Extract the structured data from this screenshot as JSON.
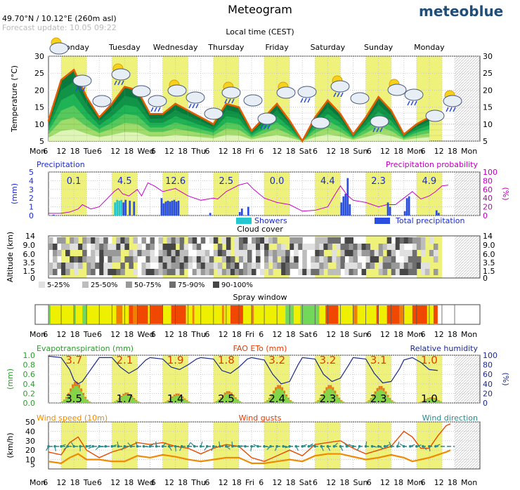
{
  "header": {
    "title": "Meteogram",
    "coords": "49.70°N / 10.12°E (260m asl)",
    "forecast_update": "Forecast update: 10.05 09:22",
    "brand": "meteoblue",
    "local_time": "Local time (CEST)"
  },
  "days": [
    "Monday",
    "Tuesday",
    "Wednesday",
    "Thursday",
    "Friday",
    "Saturday",
    "Sunday",
    "Monday"
  ],
  "bottom_axis_ticks": [
    "Mon",
    "6",
    "12",
    "18",
    "Tue",
    "6",
    "12",
    "18",
    "Wed",
    "6",
    "12",
    "18",
    "Thu",
    "6",
    "12",
    "18",
    "Fri",
    "6",
    "12",
    "18",
    "Sat",
    "6",
    "12",
    "18",
    "Sun",
    "6",
    "12",
    "18",
    "Mon",
    "6",
    "12",
    "18",
    "Mon"
  ],
  "colors": {
    "day_band": "#eef27a",
    "grid": "#c8c8c8",
    "temp_line": "#e65c00",
    "precip": "#2a4fe0",
    "showers": "#22c7d0",
    "prob_line": "#cc00cc",
    "humidity": "#1b2a8c",
    "evapo": "#7fd84a",
    "fao": "#e67a1a",
    "wind_speed": "#f08a00",
    "wind_gust": "#e84a00",
    "wind_dir": "#2a8a8a"
  },
  "chart_data": [
    {
      "type": "line",
      "panel": "temperature",
      "ylabel": "Temperature (°C)",
      "ylim": [
        5,
        30
      ],
      "yticks": [
        5,
        10,
        15,
        20,
        25,
        30
      ],
      "x_hours": [
        0,
        6,
        12,
        18,
        24,
        30,
        36,
        42,
        48,
        54,
        60,
        66,
        72,
        78,
        84,
        90,
        96,
        102,
        108,
        114,
        120,
        126,
        132,
        138,
        144,
        150,
        156,
        162,
        168,
        174,
        180,
        186,
        192
      ],
      "series": [
        {
          "values": [
            11,
            23,
            26,
            18,
            12,
            16,
            21,
            20,
            13,
            13,
            16,
            14,
            12,
            10,
            16,
            15,
            8,
            12,
            16,
            11,
            5,
            12,
            17,
            13,
            7,
            12,
            18,
            14,
            7,
            10,
            12,
            null,
            null
          ]
        }
      ]
    },
    {
      "type": "bar",
      "panel": "precipitation",
      "title_left": "Precipitation",
      "title_right": "Precipitation probability",
      "ylabel": "(mm)",
      "ylabel_right": "(%)",
      "ylim": [
        0,
        5
      ],
      "yticks": [
        0,
        1,
        2,
        3,
        4,
        5
      ],
      "ylim_right": [
        0,
        100
      ],
      "yticks_right": [
        0,
        20,
        40,
        60,
        80,
        100
      ],
      "daily_totals": [
        "0.1",
        "4.5",
        "12.6",
        "2.5",
        "0.0",
        "4.4",
        "2.3",
        "4.9"
      ],
      "legend": [
        "Showers",
        "Total precipitation"
      ],
      "bars_total": [
        [
          2,
          0.1
        ],
        [
          35,
          1.5
        ],
        [
          36,
          1.8
        ],
        [
          38,
          1.7
        ],
        [
          40,
          1.6
        ],
        [
          53,
          2.0
        ],
        [
          54,
          1.4
        ],
        [
          55,
          1.6
        ],
        [
          56,
          1.7
        ],
        [
          57,
          1.6
        ],
        [
          58,
          1.7
        ],
        [
          59,
          1.8
        ],
        [
          60,
          1.6
        ],
        [
          61,
          1.7
        ],
        [
          76,
          0.3
        ],
        [
          90,
          0.4
        ],
        [
          91,
          0.8
        ],
        [
          94,
          1.0
        ],
        [
          138,
          1.5
        ],
        [
          139,
          2.2
        ],
        [
          140,
          2.5
        ],
        [
          141,
          4.3
        ],
        [
          142,
          1.3
        ],
        [
          160,
          1.5
        ],
        [
          161,
          1.0
        ],
        [
          168,
          0.5
        ],
        [
          169,
          2.0
        ],
        [
          170,
          2.2
        ],
        [
          183,
          0.6
        ],
        [
          184,
          0.3
        ]
      ],
      "bars_showers": [
        [
          31,
          1.5
        ],
        [
          32,
          1.8
        ],
        [
          33,
          1.7
        ],
        [
          34,
          1.8
        ]
      ],
      "probability": [
        [
          0,
          5
        ],
        [
          6,
          5
        ],
        [
          10,
          8
        ],
        [
          14,
          15
        ],
        [
          16,
          25
        ],
        [
          20,
          15
        ],
        [
          24,
          20
        ],
        [
          28,
          40
        ],
        [
          31,
          55
        ],
        [
          33,
          62
        ],
        [
          35,
          50
        ],
        [
          38,
          45
        ],
        [
          42,
          60
        ],
        [
          44,
          45
        ],
        [
          47,
          75
        ],
        [
          50,
          68
        ],
        [
          54,
          55
        ],
        [
          60,
          62
        ],
        [
          66,
          45
        ],
        [
          72,
          35
        ],
        [
          78,
          40
        ],
        [
          80,
          38
        ],
        [
          84,
          55
        ],
        [
          90,
          70
        ],
        [
          94,
          75
        ],
        [
          97,
          60
        ],
        [
          102,
          40
        ],
        [
          108,
          30
        ],
        [
          114,
          25
        ],
        [
          120,
          10
        ],
        [
          126,
          12
        ],
        [
          132,
          20
        ],
        [
          135,
          45
        ],
        [
          138,
          68
        ],
        [
          141,
          48
        ],
        [
          144,
          35
        ],
        [
          150,
          30
        ],
        [
          156,
          20
        ],
        [
          160,
          25
        ],
        [
          164,
          25
        ],
        [
          168,
          40
        ],
        [
          172,
          55
        ],
        [
          176,
          38
        ],
        [
          180,
          45
        ],
        [
          183,
          55
        ],
        [
          186,
          68
        ],
        [
          189,
          70
        ]
      ]
    },
    {
      "type": "heatmap",
      "panel": "cloud_cover",
      "title": "Cloud cover",
      "ylabel": "Altitude (km)",
      "yticks": [
        "0",
        "1.5",
        "3.5",
        "6.0",
        "9.0",
        "14"
      ],
      "legend": [
        "5-25%",
        "25-50%",
        "50-75%",
        "75-90%",
        "90-100%"
      ],
      "legend_colors": [
        "#e0e0e0",
        "#bdbdbd",
        "#999999",
        "#6e6e6e",
        "#464646"
      ]
    },
    {
      "type": "table",
      "panel": "spray_window",
      "title": "Spray window",
      "segments": [
        [
          "g",
          0,
          1
        ],
        [
          "y",
          1,
          12
        ],
        [
          "g",
          12,
          13
        ],
        [
          "y",
          13,
          16
        ],
        [
          "g",
          16,
          18
        ],
        [
          "y",
          18,
          32
        ],
        [
          "o",
          32,
          35
        ],
        [
          "y",
          35,
          38
        ],
        [
          "r",
          38,
          40
        ],
        [
          "o",
          40,
          42
        ],
        [
          "r",
          42,
          47
        ],
        [
          "y",
          47,
          48
        ],
        [
          "r",
          48,
          54
        ],
        [
          "y",
          54,
          58
        ],
        [
          "r",
          58,
          65
        ],
        [
          "y",
          65,
          68
        ],
        [
          "o",
          68,
          69
        ],
        [
          "y",
          69,
          74
        ],
        [
          "g",
          74,
          75
        ],
        [
          "y",
          74,
          82
        ],
        [
          "o",
          82,
          83
        ],
        [
          "y",
          83,
          86
        ],
        [
          "r",
          86,
          92
        ],
        [
          "y",
          92,
          96
        ],
        [
          "o",
          96,
          97
        ],
        [
          "y",
          97,
          112
        ],
        [
          "g",
          112,
          116
        ],
        [
          "y",
          116,
          119
        ],
        [
          "g",
          119,
          128
        ],
        [
          "r",
          128,
          136
        ],
        [
          "y",
          128,
          131
        ],
        [
          "r",
          131,
          137
        ],
        [
          "y",
          137,
          144
        ],
        [
          "o",
          144,
          146
        ],
        [
          "y",
          146,
          155
        ],
        [
          "r",
          155,
          156
        ],
        [
          "y",
          156,
          160
        ],
        [
          "r",
          160,
          166
        ],
        [
          "o",
          166,
          168
        ],
        [
          "y",
          168,
          172
        ],
        [
          "r",
          172,
          179
        ],
        [
          "y",
          179,
          182
        ],
        [
          "r",
          182,
          184
        ],
        [
          "w",
          184,
          192
        ]
      ]
    },
    {
      "type": "bar",
      "panel": "evapotranspiration",
      "title_left": "Evapotranspiration (mm)",
      "title_mid": "FAO ETo (mm)",
      "title_right": "Relative humidity",
      "ylabel": "(mm)",
      "ylabel_right": "(%)",
      "ylim": [
        0,
        1.0
      ],
      "yticks": [
        "0.0",
        "0.2",
        "0.4",
        "0.6",
        "0.8",
        "1.0"
      ],
      "ylim_right": [
        0,
        100
      ],
      "yticks_right": [
        0,
        20,
        40,
        60,
        80,
        100
      ],
      "fao_totals": [
        "3.7",
        "2.1",
        "1.9",
        "1.8",
        "3.2",
        "3.2",
        "3.1",
        "1.0"
      ],
      "evapo_totals": [
        "3.5",
        "1.7",
        "1.4",
        "2.5",
        "2.4",
        "2.3",
        "2.3",
        "1.0"
      ],
      "humidity": [
        [
          0,
          98
        ],
        [
          6,
          95
        ],
        [
          10,
          70
        ],
        [
          12,
          48
        ],
        [
          14,
          40
        ],
        [
          16,
          45
        ],
        [
          20,
          70
        ],
        [
          24,
          95
        ],
        [
          30,
          95
        ],
        [
          34,
          75
        ],
        [
          38,
          62
        ],
        [
          42,
          72
        ],
        [
          46,
          90
        ],
        [
          48,
          95
        ],
        [
          54,
          92
        ],
        [
          58,
          75
        ],
        [
          62,
          70
        ],
        [
          66,
          80
        ],
        [
          70,
          92
        ],
        [
          72,
          95
        ],
        [
          78,
          92
        ],
        [
          82,
          68
        ],
        [
          86,
          62
        ],
        [
          90,
          75
        ],
        [
          94,
          92
        ],
        [
          96,
          95
        ],
        [
          102,
          90
        ],
        [
          106,
          60
        ],
        [
          110,
          40
        ],
        [
          114,
          45
        ],
        [
          118,
          80
        ],
        [
          120,
          95
        ],
        [
          126,
          92
        ],
        [
          130,
          60
        ],
        [
          134,
          45
        ],
        [
          138,
          52
        ],
        [
          142,
          80
        ],
        [
          144,
          95
        ],
        [
          150,
          92
        ],
        [
          154,
          62
        ],
        [
          158,
          42
        ],
        [
          162,
          45
        ],
        [
          166,
          72
        ],
        [
          168,
          90
        ],
        [
          172,
          95
        ],
        [
          176,
          85
        ],
        [
          180,
          70
        ],
        [
          184,
          68
        ]
      ]
    },
    {
      "type": "line",
      "panel": "wind",
      "title_left": "Wind speed (10m)",
      "title_mid": "Wind gusts",
      "title_right": "Wind direction",
      "ylabel": "(km/h)",
      "ylim": [
        0,
        50
      ],
      "yticks": [
        5,
        10,
        20,
        30,
        40,
        50
      ],
      "series": [
        {
          "name": "Wind speed (10m)",
          "values": [
            [
              0,
              8
            ],
            [
              6,
              6
            ],
            [
              10,
              12
            ],
            [
              14,
              16
            ],
            [
              18,
              10
            ],
            [
              24,
              10
            ],
            [
              30,
              8
            ],
            [
              36,
              8
            ],
            [
              42,
              14
            ],
            [
              48,
              12
            ],
            [
              54,
              15
            ],
            [
              60,
              13
            ],
            [
              66,
              10
            ],
            [
              72,
              8
            ],
            [
              78,
              10
            ],
            [
              84,
              12
            ],
            [
              90,
              12
            ],
            [
              96,
              6
            ],
            [
              102,
              6
            ],
            [
              108,
              8
            ],
            [
              114,
              10
            ],
            [
              120,
              8
            ],
            [
              126,
              14
            ],
            [
              132,
              16
            ],
            [
              138,
              16
            ],
            [
              144,
              13
            ],
            [
              150,
              10
            ],
            [
              156,
              12
            ],
            [
              162,
              15
            ],
            [
              168,
              12
            ],
            [
              172,
              8
            ],
            [
              176,
              10
            ],
            [
              180,
              12
            ],
            [
              184,
              15
            ],
            [
              188,
              18
            ],
            [
              190,
              20
            ]
          ]
        },
        {
          "name": "Wind gusts",
          "values": [
            [
              0,
              18
            ],
            [
              6,
              15
            ],
            [
              10,
              28
            ],
            [
              14,
              34
            ],
            [
              18,
              20
            ],
            [
              24,
              12
            ],
            [
              30,
              18
            ],
            [
              36,
              22
            ],
            [
              42,
              28
            ],
            [
              48,
              26
            ],
            [
              54,
              28
            ],
            [
              60,
              24
            ],
            [
              66,
              22
            ],
            [
              72,
              16
            ],
            [
              78,
              22
            ],
            [
              84,
              26
            ],
            [
              90,
              24
            ],
            [
              96,
              12
            ],
            [
              102,
              8
            ],
            [
              108,
              14
            ],
            [
              114,
              20
            ],
            [
              120,
              14
            ],
            [
              126,
              26
            ],
            [
              132,
              28
            ],
            [
              138,
              30
            ],
            [
              144,
              22
            ],
            [
              150,
              16
            ],
            [
              156,
              20
            ],
            [
              162,
              24
            ],
            [
              168,
              40
            ],
            [
              172,
              34
            ],
            [
              176,
              22
            ],
            [
              180,
              22
            ],
            [
              184,
              35
            ],
            [
              188,
              46
            ],
            [
              190,
              48
            ]
          ]
        }
      ]
    }
  ]
}
